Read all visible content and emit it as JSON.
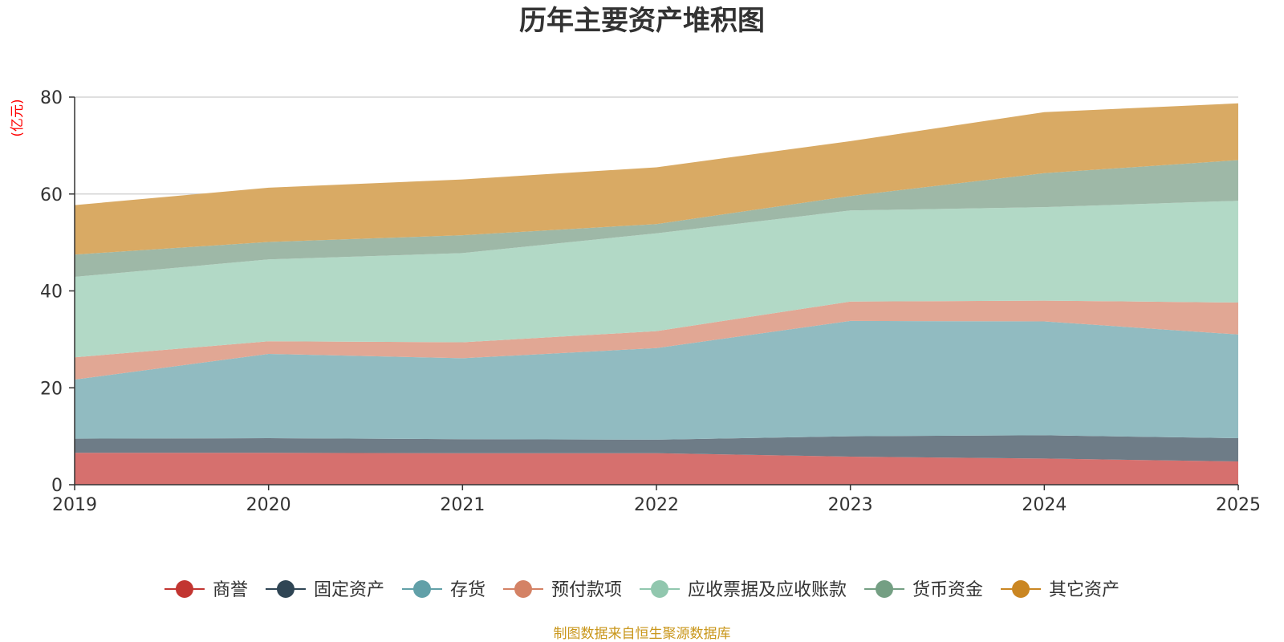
{
  "chart_data": {
    "type": "area",
    "stacked": true,
    "title": "历年主要资产堆积图",
    "ylabel": "(亿元)",
    "xlabel": "",
    "x": [
      "2019",
      "2020",
      "2021",
      "2022",
      "2023",
      "2024",
      "2025"
    ],
    "ylim": [
      0,
      80
    ],
    "yticks": [
      0,
      20,
      40,
      60,
      80
    ],
    "grid": true,
    "legend_position": "bottom",
    "series": [
      {
        "name": "商誉",
        "color": "#c23531",
        "fill": "#d6706e",
        "values": [
          6.6,
          6.6,
          6.5,
          6.5,
          5.8,
          5.4,
          4.8
        ]
      },
      {
        "name": "固定资产",
        "color": "#2f4554",
        "fill": "#6e7c87",
        "values": [
          2.9,
          3.0,
          2.9,
          2.8,
          4.2,
          4.8,
          4.8
        ]
      },
      {
        "name": "存货",
        "color": "#61a0a8",
        "fill": "#91bbc1",
        "values": [
          12.2,
          17.4,
          16.7,
          18.9,
          23.8,
          23.5,
          21.4
        ]
      },
      {
        "name": "预付款项",
        "color": "#d48265",
        "fill": "#e1a794",
        "values": [
          4.6,
          2.6,
          3.3,
          3.5,
          4.0,
          4.3,
          6.6
        ]
      },
      {
        "name": "应收票据及应收账款",
        "color": "#91c7ae",
        "fill": "#b2d9c6",
        "values": [
          16.6,
          16.9,
          18.4,
          20.2,
          18.8,
          19.3,
          21.0
        ]
      },
      {
        "name": "货币资金",
        "color": "#749f83",
        "fill": "#9eb8a7",
        "values": [
          4.6,
          3.6,
          3.7,
          1.9,
          3.0,
          7.0,
          8.4
        ]
      },
      {
        "name": "其它资产",
        "color": "#ca8622",
        "fill": "#d9aa64",
        "values": [
          10.2,
          11.2,
          11.5,
          11.7,
          11.3,
          12.6,
          11.7
        ]
      }
    ],
    "source_note": "制图数据来自恒生聚源数据库",
    "colors": {
      "title": "#333333",
      "axis": "#333333",
      "grid": "#cccccc",
      "unit": "#ff0000",
      "source": "#c9961a"
    }
  }
}
